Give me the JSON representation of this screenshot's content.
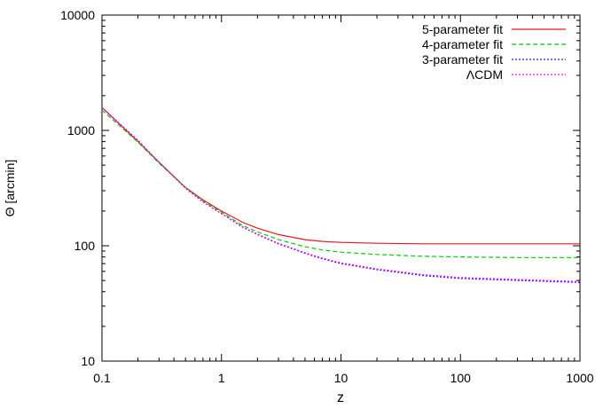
{
  "chart_data": {
    "type": "line",
    "title": "",
    "xlabel": "z",
    "ylabel": "Θ [arcmin]",
    "xscale": "log",
    "yscale": "log",
    "xlim": [
      0.1,
      1000
    ],
    "ylim": [
      10,
      10000
    ],
    "grid": false,
    "legend_position": "top-right",
    "x_ticks": [
      {
        "value": 0.1,
        "label": "0.1"
      },
      {
        "value": 1,
        "label": "1"
      },
      {
        "value": 10,
        "label": "10"
      },
      {
        "value": 100,
        "label": "100"
      },
      {
        "value": 1000,
        "label": "1000"
      }
    ],
    "y_ticks": [
      {
        "value": 10,
        "label": "10"
      },
      {
        "value": 100,
        "label": "100"
      },
      {
        "value": 1000,
        "label": "1000"
      },
      {
        "value": 10000,
        "label": "10000"
      }
    ],
    "series": [
      {
        "name": "5-parameter fit",
        "color": "#e41a1c",
        "style": "solid",
        "x": [
          0.1,
          0.2,
          0.3,
          0.5,
          0.7,
          1,
          1.5,
          2,
          3,
          5,
          7,
          10,
          20,
          50,
          100,
          300,
          1000
        ],
        "y": [
          1580,
          800,
          530,
          320,
          250,
          200,
          160,
          142,
          125,
          113,
          109,
          107,
          105,
          104,
          104,
          104,
          104
        ]
      },
      {
        "name": "4-parameter fit",
        "color": "#00cc00",
        "style": "dashed",
        "x": [
          0.1,
          0.2,
          0.3,
          0.5,
          0.7,
          1,
          1.5,
          2,
          3,
          5,
          7,
          10,
          20,
          50,
          100,
          300,
          1000
        ],
        "y": [
          1500,
          790,
          520,
          320,
          245,
          195,
          150,
          132,
          113,
          98,
          92,
          88,
          84,
          81,
          80,
          79,
          79
        ]
      },
      {
        "name": "3-parameter fit",
        "color": "#1a1aff",
        "style": "dotted",
        "x": [
          0.1,
          0.2,
          0.3,
          0.5,
          0.7,
          1,
          1.5,
          2,
          3,
          5,
          7,
          10,
          20,
          50,
          100,
          300,
          1000
        ],
        "y": [
          1580,
          820,
          530,
          315,
          240,
          190,
          145,
          125,
          104,
          86,
          77,
          70,
          62,
          55,
          52,
          50,
          48
        ]
      },
      {
        "name": "ΛCDM",
        "color": "#ff00ff",
        "style": "dotted",
        "x": [
          0.1,
          0.2,
          0.3,
          0.5,
          0.7,
          1,
          1.5,
          2,
          3,
          5,
          7,
          10,
          20,
          50,
          100,
          300,
          1000
        ],
        "y": [
          1580,
          820,
          530,
          315,
          240,
          190,
          146,
          126,
          105,
          87,
          78,
          71,
          63,
          56,
          53,
          51,
          49
        ]
      }
    ]
  }
}
